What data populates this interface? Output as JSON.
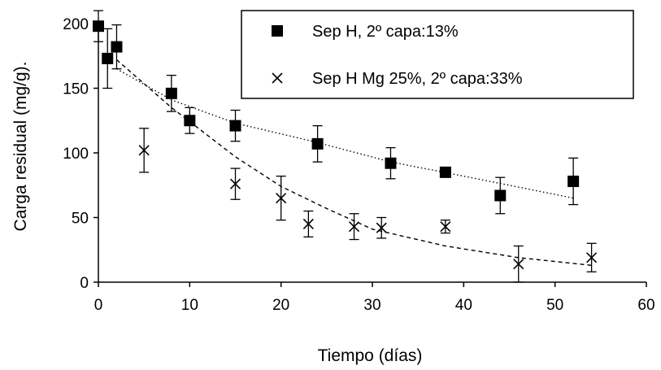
{
  "chart_data": {
    "type": "scatter",
    "xlabel": "Tiempo (días)",
    "ylabel": "Carga residual (mg/g).",
    "xlim": [
      0,
      60
    ],
    "ylim": [
      0,
      200
    ],
    "xticks": [
      "0",
      "10",
      "20",
      "30",
      "40",
      "50",
      "60"
    ],
    "yticks": [
      "0",
      "50",
      "100",
      "150",
      "200"
    ],
    "grid": false,
    "legend_position": "top-right",
    "series": [
      {
        "name": "Sep H, 2º capa:13%",
        "marker": "square",
        "color": "#000000",
        "x": [
          0,
          1,
          2,
          8,
          10,
          15,
          24,
          32,
          38,
          44,
          52
        ],
        "y": [
          198,
          173,
          182,
          146,
          125,
          121,
          107,
          92,
          85,
          67,
          78
        ],
        "error": [
          12,
          23,
          17,
          14,
          10,
          12,
          14,
          12,
          3,
          14,
          18
        ],
        "trend": {
          "style": "dotted",
          "x": [
            2,
            8,
            15,
            24,
            32,
            40,
            52
          ],
          "y": [
            165,
            141,
            123,
            108,
            93,
            82,
            65
          ]
        }
      },
      {
        "name": "Sep H Mg 25%,  2º capa:33%",
        "marker": "x",
        "color": "#000000",
        "x": [
          5,
          15,
          20,
          23,
          28,
          31,
          38,
          46,
          54
        ],
        "y": [
          102,
          76,
          65,
          45,
          43,
          42,
          43,
          14,
          19
        ],
        "error": [
          17,
          12,
          17,
          10,
          10,
          8,
          5,
          14,
          11
        ],
        "trend": {
          "style": "dashed",
          "x": [
            2,
            8,
            15,
            20,
            25,
            30,
            38,
            46,
            54
          ],
          "y": [
            172,
            135,
            97,
            74,
            57,
            41,
            28,
            19,
            13
          ]
        }
      }
    ]
  }
}
